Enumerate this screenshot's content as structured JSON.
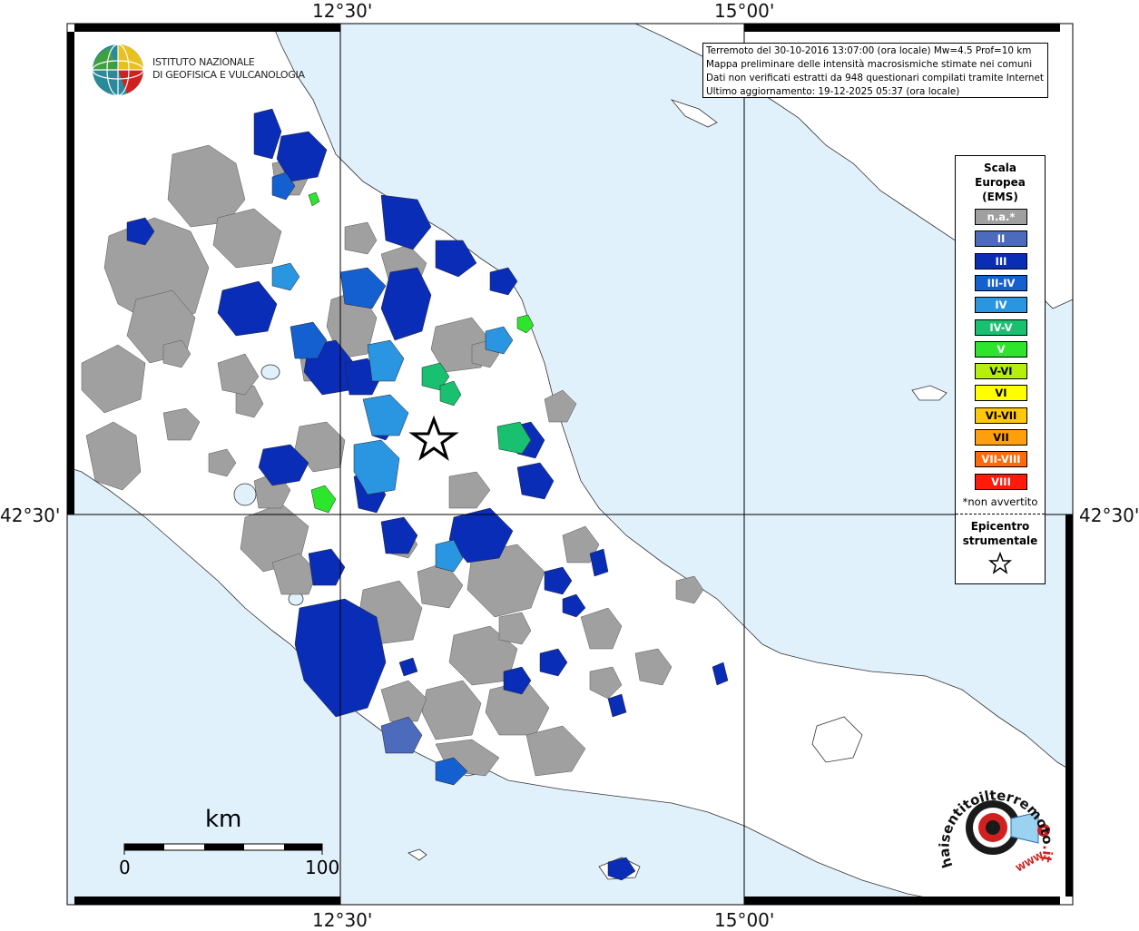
{
  "map": {
    "colors": {
      "sea": "#e1f1fb",
      "land": "#ffffff",
      "na": "#a0a0a0",
      "II": "#4c6bbc",
      "III": "#0a2db8",
      "III-IV": "#1560d0",
      "IV": "#2a95e0",
      "IV-V": "#18c070",
      "V": "#2ee52e",
      "grid": "#000000"
    },
    "coords": {
      "top_left": "12°30'",
      "top_right": "15°00'",
      "bottom_left": "12°30'",
      "bottom_right": "15°00'",
      "left": "42°30'",
      "right": "42°30'"
    }
  },
  "info": {
    "line1": "Terremoto del 30-10-2016 13:07:00 (ora locale) Mw=4.5 Prof=10 km",
    "line2": "Mappa preliminare delle intensità macrosismiche stimate nei comuni",
    "line3": "Dati non verificati estratti da 948 questionari compilati tramite Internet.",
    "line4": "Ultimo aggiornamento: 19-12-2025 05:37 (ora locale)"
  },
  "logo": {
    "line1": "ISTITUTO NAZIONALE",
    "line2": "DI GEOFISICA E VULCANOLOGIA"
  },
  "legend": {
    "title1": "Scala",
    "title2": "Europea",
    "title3": "(EMS)",
    "items": [
      {
        "label": "n.a.*",
        "color": "#a0a0a0"
      },
      {
        "label": "II",
        "color": "#4c6bbc"
      },
      {
        "label": "III",
        "color": "#0a2db8"
      },
      {
        "label": "III-IV",
        "color": "#1560d0"
      },
      {
        "label": "IV",
        "color": "#2a95e0"
      },
      {
        "label": "IV-V",
        "color": "#18c070"
      },
      {
        "label": "V",
        "color": "#2ee52e"
      },
      {
        "label": "V-VI",
        "color": "#b6f00a"
      },
      {
        "label": "VI",
        "color": "#ffff00"
      },
      {
        "label": "VI-VII",
        "color": "#ffc80a"
      },
      {
        "label": "VII",
        "color": "#ffa00a"
      },
      {
        "label": "VII-VIII",
        "color": "#ff6a0a"
      },
      {
        "label": "VIII",
        "color": "#ff1a0a"
      }
    ],
    "note": "*non avvertito",
    "epicentre1": "Epicentro",
    "epicentre2": "strumentale"
  },
  "scalebar": {
    "unit": "km",
    "min": "0",
    "max": "100"
  },
  "hst_logo": {
    "text_black": "haisentitoilterremoto",
    "text_red": ".it",
    "text_www": "WWW."
  }
}
